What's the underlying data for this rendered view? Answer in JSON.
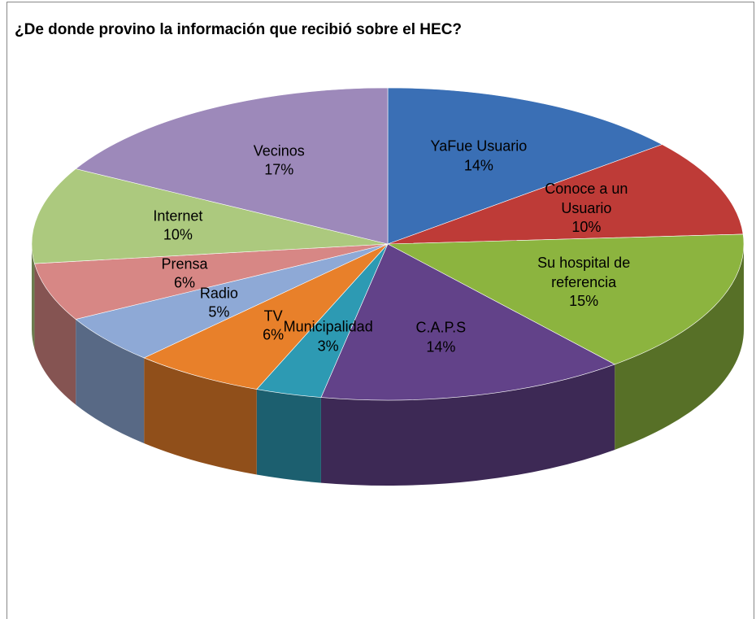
{
  "chart_data": {
    "type": "pie",
    "title": "¿De donde provino la información que recibió sobre el HEC?",
    "categories": [
      "YaFue Usuario",
      "Conoce a un Usuario",
      "Su hospital de referencia",
      "C.A.P.S",
      "Municipalidad",
      "TV",
      "Radio",
      "Prensa",
      "Internet",
      "Vecinos"
    ],
    "values": [
      14,
      10,
      15,
      14,
      3,
      6,
      5,
      6,
      10,
      17
    ],
    "value_labels": [
      "14%",
      "10%",
      "15%",
      "14%",
      "3%",
      "6%",
      "5%",
      "6%",
      "10%",
      "17%"
    ],
    "colors": [
      "#3a6fb5",
      "#be3b37",
      "#8cb43f",
      "#624289",
      "#2d9ab3",
      "#e8802a",
      "#8ea9d6",
      "#d78785",
      "#acc97e",
      "#9d89ba"
    ]
  }
}
